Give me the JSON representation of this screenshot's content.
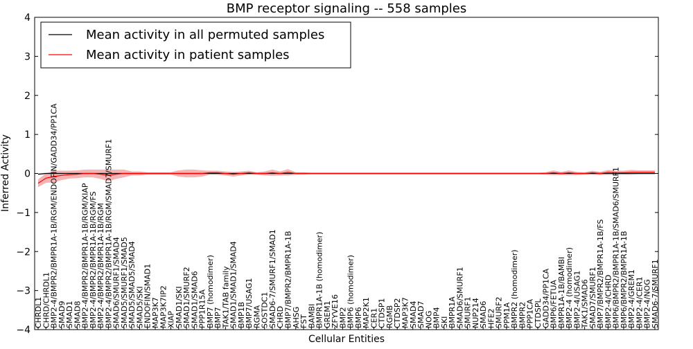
{
  "chart_data": {
    "type": "line",
    "title": "BMP receptor signaling -- 558 samples",
    "xlabel": "Cellular Entities",
    "ylabel": "Inferred Activity",
    "ylim": [
      -4,
      4
    ],
    "y_ticks": [
      -4,
      -3,
      -2,
      -1,
      0,
      1,
      2,
      3,
      4
    ],
    "legend_position": "top-left",
    "categories": [
      "CHRDL1",
      "CHRD/CHRDL1",
      "BMP2-4/BMPR2/BMPR1A-1B/RGM/ENDOFIN/GADD34/PP1CA",
      "SMAD9",
      "SMAD1",
      "SMAD8",
      "BMP2-4/BMPR2/BMPR1A-1B/RGM/XIAP",
      "BMP2-4/BMPR2/BMPR1A-1B/RGM/FS",
      "BMP2-4/BMPR2/BMPR1A-1B/RGM",
      "BMP2-4/BMPR2/BMPR1A-1B/RGM/SMAD7/SMURF1",
      "SMAD6/SMURF1/SMAD4",
      "SMAD5/SMURF1/SMAD5",
      "SMAD5/SMAD5/SMAD4",
      "SMAD5/SKI",
      "ENDOFIN/SMAD1",
      "MAP3K7",
      "MAP3K7IP2",
      "XIAP",
      "SMAD1/SKI",
      "SMAD1/SMURF2",
      "SMAD1/SMAD6",
      "PPP1R15A",
      "BMP7 (homodimer)",
      "BMP7",
      "TAK1/TAB family",
      "SMAD1/SMAD1/SMAD4",
      "BMP1B",
      "BMP7/USAG1",
      "RGMA",
      "SOSTDC1",
      "SMAD6-7/SMURF1/SMAD1",
      "CHRD",
      "BMP7/BMPR2/BMPR1A-1B",
      "AHSG",
      "FST",
      "BAMBI",
      "BMPR1A-1B (homodimer)",
      "GREM1",
      "ZFYVE16",
      "BMP2",
      "BMP6 (homodimer)",
      "BMP6",
      "MAP2K1",
      "CER1",
      "CTDSP1",
      "RGMB",
      "CTDSP2",
      "MAP3K7",
      "SMAD4",
      "SMAD7",
      "NOG",
      "BMP4",
      "SKI",
      "BMPR1A",
      "SMAD6/SMURF1",
      "SMURF1",
      "NUP214",
      "SMAD6",
      "HFE2",
      "SMURF2",
      "PPM1A",
      "BMPR2 (homodimer)",
      "BMPR2",
      "PPP1CA",
      "CTDSPL",
      "GADD34/PP1CA",
      "BMP6/FETUA",
      "BMPR1A-1B/BAMBI",
      "BMP2-4 (homodimer)",
      "BMP2-4/USAG1",
      "TAK1/SMAD6",
      "SMAD7/SMURF1",
      "BMP7/BMPR2/BMPR1A-1B/FS",
      "BMP2-4/CHRD",
      "BMP6/BMPR2/BMPR1A-1B/SMAD6/SMURF1",
      "BMP6/BMPR2/BMPR1A-1B",
      "BMP2-4/GREM1",
      "BMP2-4/CER1",
      "BMP2-4/NOG",
      "SMAD6-7/SMURF1"
    ],
    "series": [
      {
        "name": "Mean activity in all permuted samples",
        "color": "#000000",
        "values": [
          -0.02,
          0.0,
          0.0,
          0.0,
          0.0,
          0.0,
          0.0,
          0.0,
          0.0,
          0.0,
          0.0,
          0.0,
          0.0,
          0.0,
          0.0,
          0.0,
          0.0,
          0.0,
          0.0,
          0.0,
          0.0,
          0.0,
          0.0,
          0.0,
          0.0,
          0.0,
          0.0,
          0.0,
          0.0,
          0.0,
          0.0,
          0.0,
          0.0,
          0.0,
          0.0,
          0.0,
          0.0,
          0.0,
          0.0,
          0.0,
          0.0,
          0.0,
          0.0,
          0.0,
          0.0,
          0.0,
          0.0,
          0.0,
          0.0,
          0.0,
          0.0,
          0.0,
          0.0,
          0.0,
          0.0,
          0.0,
          0.0,
          0.0,
          0.0,
          0.0,
          0.0,
          0.0,
          0.0,
          0.0,
          0.0,
          0.0,
          0.0,
          0.0,
          0.0,
          0.0,
          0.0,
          0.0,
          0.0,
          0.0,
          0.0,
          0.0,
          0.0,
          0.0,
          0.0,
          0.0
        ],
        "band": [
          0.02,
          0.02,
          0.02,
          0.02,
          0.02,
          0.02,
          0.02,
          0.02,
          0.02,
          0.02,
          0.02,
          0.02,
          0.02,
          0.02,
          0.02,
          0.02,
          0.02,
          0.02,
          0.02,
          0.02,
          0.02,
          0.02,
          0.02,
          0.02,
          0.02,
          0.02,
          0.02,
          0.02,
          0.02,
          0.02,
          0.02,
          0.02,
          0.02,
          0.02,
          0.02,
          0.02,
          0.02,
          0.02,
          0.02,
          0.02,
          0.02,
          0.02,
          0.02,
          0.02,
          0.02,
          0.02,
          0.02,
          0.02,
          0.02,
          0.02,
          0.02,
          0.02,
          0.02,
          0.02,
          0.02,
          0.02,
          0.02,
          0.02,
          0.02,
          0.02,
          0.02,
          0.02,
          0.02,
          0.02,
          0.02,
          0.02,
          0.02,
          0.02,
          0.02,
          0.02,
          0.02,
          0.02,
          0.02,
          0.02,
          0.02,
          0.02,
          0.02,
          0.02,
          0.02,
          0.02
        ]
      },
      {
        "name": "Mean activity in patient samples",
        "color": "#ff0000",
        "band_color": "#f08080",
        "values": [
          -0.25,
          -0.12,
          -0.08,
          -0.05,
          -0.03,
          -0.02,
          0.0,
          0.0,
          -0.02,
          -0.05,
          -0.02,
          0.0,
          0.0,
          0.0,
          0.0,
          0.0,
          0.0,
          0.0,
          0.0,
          0.0,
          0.0,
          0.0,
          0.02,
          0.02,
          0.0,
          -0.02,
          0.0,
          0.02,
          0.0,
          0.0,
          0.02,
          0.0,
          0.03,
          0.0,
          0.0,
          0.0,
          0.0,
          0.0,
          0.0,
          0.0,
          0.0,
          0.0,
          0.0,
          0.0,
          0.0,
          0.0,
          0.0,
          0.0,
          0.0,
          0.0,
          0.0,
          0.0,
          0.0,
          0.0,
          0.0,
          0.0,
          0.0,
          0.0,
          0.0,
          0.0,
          0.0,
          0.0,
          0.0,
          0.0,
          0.0,
          0.0,
          0.02,
          0.0,
          0.02,
          0.0,
          0.0,
          0.02,
          0.0,
          0.03,
          0.02,
          0.02,
          0.03,
          0.03,
          0.03,
          0.03
        ],
        "band": [
          0.1,
          0.12,
          0.15,
          0.12,
          0.1,
          0.1,
          0.1,
          0.1,
          0.12,
          0.15,
          0.12,
          0.1,
          0.05,
          0.05,
          0.03,
          0.03,
          0.03,
          0.03,
          0.08,
          0.1,
          0.1,
          0.08,
          0.05,
          0.05,
          0.05,
          0.06,
          0.05,
          0.05,
          0.03,
          0.05,
          0.08,
          0.05,
          0.08,
          0.03,
          0.03,
          0.02,
          0.02,
          0.02,
          0.02,
          0.02,
          0.02,
          0.02,
          0.02,
          0.02,
          0.02,
          0.02,
          0.02,
          0.02,
          0.02,
          0.02,
          0.02,
          0.02,
          0.02,
          0.02,
          0.02,
          0.02,
          0.02,
          0.02,
          0.02,
          0.02,
          0.02,
          0.02,
          0.02,
          0.02,
          0.02,
          0.03,
          0.06,
          0.04,
          0.06,
          0.04,
          0.03,
          0.05,
          0.04,
          0.06,
          0.05,
          0.05,
          0.06,
          0.05,
          0.05,
          0.05
        ]
      }
    ]
  }
}
